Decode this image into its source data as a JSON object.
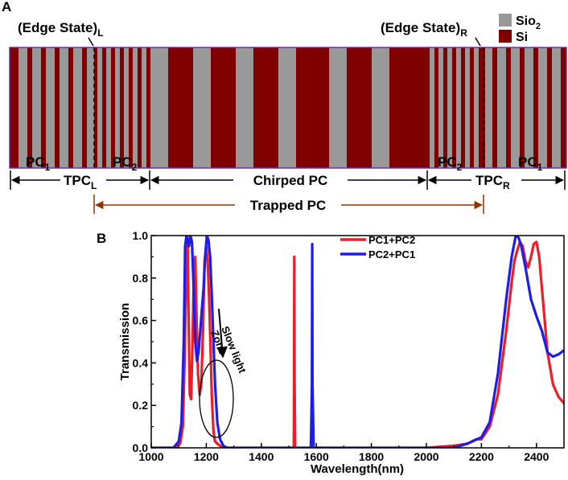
{
  "colors": {
    "sio2": "#999999",
    "si": "#800000",
    "border": "#7030a0",
    "arrow_brown": "#993300",
    "series1": "#ee1c25",
    "series2": "#1c1cee"
  },
  "panel_a": {
    "label": "A",
    "edge_state_left": {
      "main": "(Edge State)",
      "sub": "L"
    },
    "edge_state_right": {
      "main": "(Edge State)",
      "sub": "R"
    },
    "legend": [
      {
        "name_main": "Sio",
        "name_sub": "2",
        "color_key": "sio2"
      },
      {
        "name_main": "Si",
        "name_sub": "",
        "color_key": "si"
      }
    ],
    "region_labels": {
      "pc1_left": {
        "main": "PC",
        "sub": "1"
      },
      "pc2_left": {
        "main": "PC",
        "sub": "2"
      },
      "pc2_right": {
        "main": "PC",
        "sub": "2"
      },
      "pc1_right": {
        "main": "PC",
        "sub": "1"
      }
    },
    "arrows": {
      "tpc_left": {
        "main": "TPC",
        "sub": "L"
      },
      "chirped": {
        "main": "Chirped PC",
        "sub": ""
      },
      "tpc_right": {
        "main": "TPC",
        "sub": "R"
      },
      "trapped": {
        "main": "Trapped PC",
        "sub": ""
      }
    }
  },
  "panel_b": {
    "label": "B",
    "annotation": {
      "slow": "Slow light",
      "zone": "Zone"
    }
  },
  "chart_data": {
    "type": "line",
    "xlabel": "Wavelength(nm)",
    "ylabel": "Transmission",
    "xlim": [
      1000,
      2500
    ],
    "ylim": [
      0,
      1.0
    ],
    "xticks": [
      1000,
      1200,
      1400,
      1600,
      1800,
      2000,
      2200,
      2400
    ],
    "yticks": [
      0.0,
      0.2,
      0.4,
      0.6,
      0.8,
      1.0
    ],
    "legend_position": "top-right",
    "series": [
      {
        "name": "PC1+PC2",
        "color": "#ee1c25",
        "x": [
          1000,
          1090,
          1105,
          1115,
          1122,
          1128,
          1132,
          1136,
          1140,
          1145,
          1150,
          1155,
          1160,
          1165,
          1170,
          1176,
          1182,
          1188,
          1194,
          1200,
          1205,
          1210,
          1215,
          1220,
          1226,
          1232,
          1240,
          1250,
          1260,
          1280,
          1300,
          1350,
          1500,
          1518,
          1519,
          1520,
          1521,
          1523,
          1526,
          1600,
          1800,
          2000,
          2100,
          2150,
          2180,
          2200,
          2230,
          2260,
          2290,
          2310,
          2320,
          2330,
          2340,
          2350,
          2360,
          2370,
          2380,
          2390,
          2400,
          2410,
          2420,
          2440,
          2460,
          2480,
          2500
        ],
        "y": [
          0.0,
          0.0,
          0.02,
          0.1,
          0.45,
          0.9,
          0.99,
          0.6,
          0.25,
          0.23,
          0.5,
          0.82,
          0.9,
          0.6,
          0.35,
          0.25,
          0.3,
          0.55,
          0.88,
          0.95,
          0.88,
          0.72,
          0.5,
          0.25,
          0.08,
          0.03,
          0.02,
          0.01,
          0.0,
          0.0,
          0.0,
          0.0,
          0.0,
          0.0,
          0.3,
          0.9,
          0.3,
          0.0,
          0.0,
          0.0,
          0.0,
          0.0,
          0.01,
          0.02,
          0.04,
          0.04,
          0.1,
          0.25,
          0.55,
          0.78,
          0.88,
          0.93,
          0.97,
          0.95,
          0.88,
          0.85,
          0.9,
          0.96,
          0.97,
          0.9,
          0.75,
          0.45,
          0.3,
          0.24,
          0.21
        ]
      },
      {
        "name": "PC2+PC1",
        "color": "#1c1cee",
        "x": [
          1000,
          1080,
          1100,
          1110,
          1118,
          1123,
          1128,
          1132,
          1137,
          1142,
          1148,
          1154,
          1160,
          1166,
          1172,
          1178,
          1184,
          1190,
          1196,
          1202,
          1208,
          1214,
          1220,
          1226,
          1232,
          1240,
          1250,
          1262,
          1275,
          1290,
          1300,
          1500,
          1580,
          1584,
          1585,
          1586,
          1590,
          1600,
          1800,
          2000,
          2100,
          2150,
          2200,
          2230,
          2260,
          2290,
          2310,
          2325,
          2335,
          2345,
          2360,
          2380,
          2400,
          2420,
          2440,
          2460,
          2480,
          2500
        ],
        "y": [
          0.0,
          0.0,
          0.03,
          0.12,
          0.5,
          0.95,
          1.0,
          0.97,
          0.95,
          1.0,
          0.97,
          0.75,
          0.5,
          0.41,
          0.45,
          0.55,
          0.65,
          0.75,
          0.9,
          1.0,
          0.98,
          0.9,
          0.72,
          0.5,
          0.3,
          0.12,
          0.04,
          0.01,
          0.0,
          0.0,
          0.0,
          0.0,
          0.0,
          0.3,
          0.96,
          0.3,
          0.0,
          0.0,
          0.0,
          0.0,
          0.0,
          0.02,
          0.05,
          0.12,
          0.35,
          0.7,
          0.9,
          1.0,
          0.99,
          0.95,
          0.85,
          0.7,
          0.62,
          0.55,
          0.45,
          0.43,
          0.44,
          0.46
        ]
      }
    ]
  }
}
